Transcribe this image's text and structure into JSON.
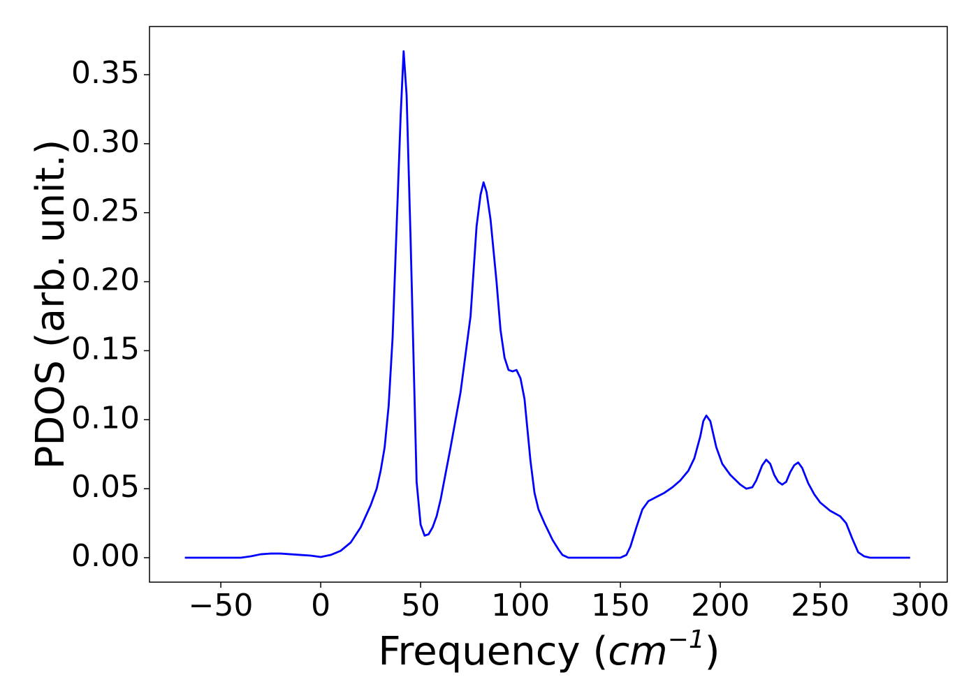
{
  "chart_data": {
    "type": "line",
    "x_label": [
      "Frequency (",
      "cm",
      "−1",
      ")"
    ],
    "y_label": "PDOS (arb. unit.)",
    "xlim": [
      -85.7,
      313.6
    ],
    "ylim": [
      -0.0177,
      0.3849
    ],
    "xticks": [
      {
        "value": -50,
        "label": "−50"
      },
      0,
      50,
      100,
      150,
      200,
      250,
      300
    ],
    "yticks": [
      {
        "value": 0,
        "label": "0.00"
      },
      {
        "value": 0.05,
        "label": "0.05"
      },
      {
        "value": 0.1,
        "label": "0.10"
      },
      {
        "value": 0.15,
        "label": "0.15"
      },
      {
        "value": 0.2,
        "label": "0.20"
      },
      {
        "value": 0.25,
        "label": "0.25"
      },
      {
        "value": 0.3,
        "label": "0.30"
      },
      {
        "value": 0.35,
        "label": "0.35"
      }
    ],
    "grid": false,
    "x": [
      -68,
      -40,
      -35,
      -30,
      -25,
      -20,
      -10,
      -5,
      0,
      5,
      10,
      15,
      20,
      25,
      28,
      30,
      32,
      34,
      36,
      38,
      40,
      41.5,
      43,
      45,
      48,
      50,
      52,
      54,
      56,
      58,
      60,
      65,
      70,
      75,
      78,
      80,
      81.5,
      83,
      85,
      88,
      90,
      92,
      94,
      96,
      98,
      100,
      102,
      105,
      107,
      109,
      112,
      116,
      119,
      121,
      124,
      150,
      153,
      155,
      158,
      161,
      164,
      168,
      172,
      176,
      180,
      184,
      187,
      190,
      191.5,
      193,
      195,
      198,
      201,
      205,
      210,
      213,
      216,
      218,
      221,
      223,
      225,
      227,
      229,
      231,
      233,
      235,
      237,
      239,
      241,
      244,
      247,
      250,
      255,
      260,
      263,
      266,
      269,
      272,
      275,
      295
    ],
    "series": [
      {
        "color": "#0000ff",
        "values": [
          0,
          0,
          0.001,
          0.0025,
          0.003,
          0.003,
          0.002,
          0.0015,
          0.0005,
          0.002,
          0.005,
          0.011,
          0.022,
          0.038,
          0.05,
          0.063,
          0.08,
          0.11,
          0.16,
          0.24,
          0.32,
          0.367,
          0.335,
          0.23,
          0.055,
          0.024,
          0.016,
          0.017,
          0.022,
          0.03,
          0.042,
          0.08,
          0.12,
          0.175,
          0.24,
          0.263,
          0.272,
          0.265,
          0.245,
          0.2,
          0.165,
          0.145,
          0.136,
          0.135,
          0.136,
          0.13,
          0.115,
          0.07,
          0.047,
          0.035,
          0.025,
          0.013,
          0.006,
          0.002,
          0,
          0,
          0.002,
          0.008,
          0.022,
          0.035,
          0.041,
          0.044,
          0.047,
          0.051,
          0.056,
          0.063,
          0.072,
          0.088,
          0.099,
          0.103,
          0.099,
          0.08,
          0.068,
          0.06,
          0.053,
          0.05,
          0.051,
          0.056,
          0.067,
          0.071,
          0.068,
          0.06,
          0.055,
          0.053,
          0.055,
          0.062,
          0.067,
          0.069,
          0.065,
          0.054,
          0.046,
          0.04,
          0.034,
          0.03,
          0.025,
          0.014,
          0.004,
          0.001,
          0,
          0
        ]
      }
    ]
  }
}
